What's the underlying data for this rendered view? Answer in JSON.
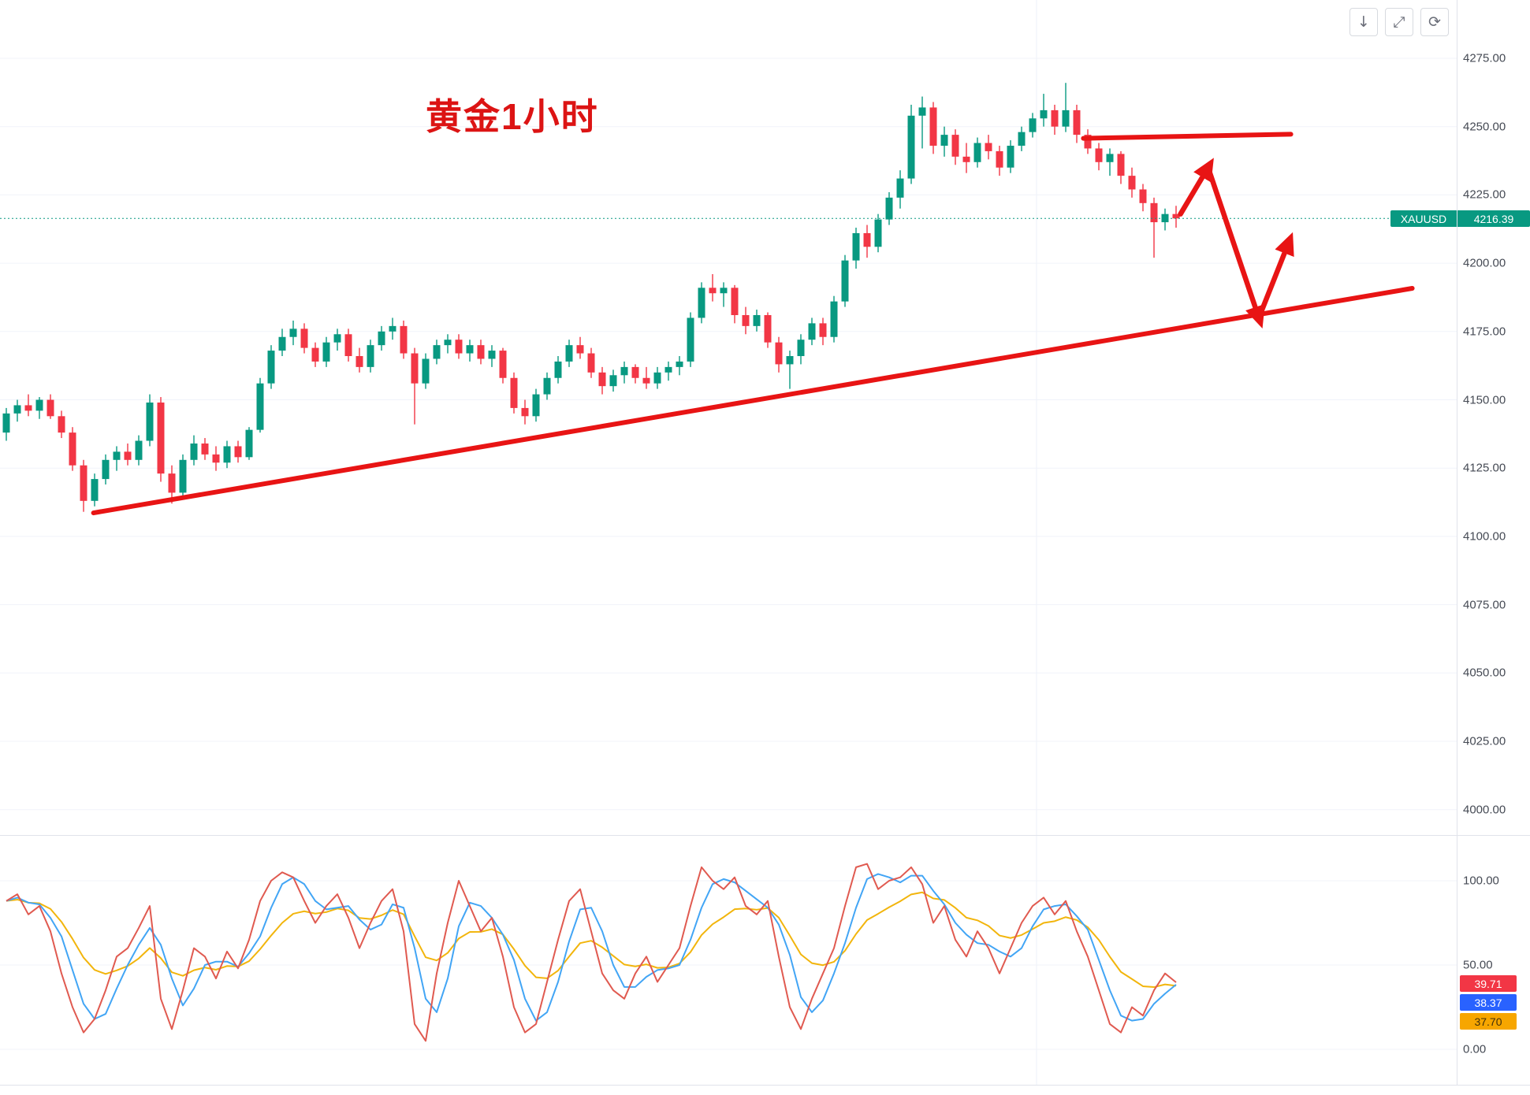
{
  "symbol": {
    "name": "XAUUSD",
    "last_price": "4216.39",
    "badge_bg": "#089981"
  },
  "annotations": {
    "title": "黄金1小时",
    "color": "#dc1414"
  },
  "toolbar": {
    "buttons": [
      {
        "name": "scroll-to-latest",
        "glyph": "↓"
      },
      {
        "name": "maximize",
        "glyph": "⤢"
      },
      {
        "name": "reset-chart",
        "glyph": "⟳"
      }
    ]
  },
  "price_axis": {
    "ticks": [
      "4275.00",
      "4250.00",
      "4225.00",
      "4200.00",
      "4175.00",
      "4150.00",
      "4125.00",
      "4100.00",
      "4075.00",
      "4050.00",
      "4025.00",
      "4000.00"
    ]
  },
  "indicator_axis": {
    "ticks": [
      "100.00",
      "50.00",
      "0.00"
    ]
  },
  "indicator_badges": [
    {
      "value": "39.71",
      "bg": "#f23645",
      "fg": "#ffffff"
    },
    {
      "value": "38.37",
      "bg": "#2962ff",
      "fg": "#ffffff"
    },
    {
      "value": "37.70",
      "bg": "#f7a600",
      "fg": "#42300a"
    }
  ],
  "chart_data": {
    "type": "candlestick",
    "title": "黄金1小时",
    "symbol": "XAUUSD",
    "timeframe": "1H",
    "last_price": 4216.39,
    "ylim": [
      4000,
      4275
    ],
    "price_axis_ticks": [
      4275,
      4250,
      4225,
      4200,
      4175,
      4150,
      4125,
      4100,
      4075,
      4050,
      4025,
      4000
    ],
    "up_color": "#089981",
    "down_color": "#f23645",
    "candles": [
      [
        4138,
        4147,
        4135,
        4145
      ],
      [
        4145,
        4150,
        4142,
        4148
      ],
      [
        4148,
        4152,
        4144,
        4146
      ],
      [
        4146,
        4151,
        4143,
        4150
      ],
      [
        4150,
        4152,
        4143,
        4144
      ],
      [
        4144,
        4146,
        4136,
        4138
      ],
      [
        4138,
        4140,
        4124,
        4126
      ],
      [
        4126,
        4128,
        4109,
        4113
      ],
      [
        4113,
        4123,
        4111,
        4121
      ],
      [
        4121,
        4130,
        4119,
        4128
      ],
      [
        4128,
        4133,
        4124,
        4131
      ],
      [
        4131,
        4134,
        4126,
        4128
      ],
      [
        4128,
        4137,
        4126,
        4135
      ],
      [
        4135,
        4152,
        4133,
        4149
      ],
      [
        4149,
        4151,
        4120,
        4123
      ],
      [
        4123,
        4126,
        4112,
        4116
      ],
      [
        4116,
        4130,
        4114,
        4128
      ],
      [
        4128,
        4137,
        4126,
        4134
      ],
      [
        4134,
        4136,
        4128,
        4130
      ],
      [
        4130,
        4133,
        4124,
        4127
      ],
      [
        4127,
        4135,
        4125,
        4133
      ],
      [
        4133,
        4135,
        4127,
        4129
      ],
      [
        4129,
        4140,
        4128,
        4139
      ],
      [
        4139,
        4158,
        4138,
        4156
      ],
      [
        4156,
        4170,
        4154,
        4168
      ],
      [
        4168,
        4176,
        4166,
        4173
      ],
      [
        4173,
        4179,
        4170,
        4176
      ],
      [
        4176,
        4178,
        4167,
        4169
      ],
      [
        4169,
        4171,
        4162,
        4164
      ],
      [
        4164,
        4173,
        4162,
        4171
      ],
      [
        4171,
        4176,
        4168,
        4174
      ],
      [
        4174,
        4176,
        4164,
        4166
      ],
      [
        4166,
        4169,
        4160,
        4162
      ],
      [
        4162,
        4172,
        4160,
        4170
      ],
      [
        4170,
        4177,
        4168,
        4175
      ],
      [
        4175,
        4180,
        4172,
        4177
      ],
      [
        4177,
        4179,
        4165,
        4167
      ],
      [
        4167,
        4169,
        4141,
        4156
      ],
      [
        4156,
        4167,
        4154,
        4165
      ],
      [
        4165,
        4172,
        4163,
        4170
      ],
      [
        4170,
        4174,
        4167,
        4172
      ],
      [
        4172,
        4174,
        4165,
        4167
      ],
      [
        4167,
        4172,
        4164,
        4170
      ],
      [
        4170,
        4172,
        4163,
        4165
      ],
      [
        4165,
        4170,
        4162,
        4168
      ],
      [
        4168,
        4169,
        4156,
        4158
      ],
      [
        4158,
        4160,
        4145,
        4147
      ],
      [
        4147,
        4150,
        4141,
        4144
      ],
      [
        4144,
        4154,
        4142,
        4152
      ],
      [
        4152,
        4160,
        4150,
        4158
      ],
      [
        4158,
        4166,
        4156,
        4164
      ],
      [
        4164,
        4172,
        4162,
        4170
      ],
      [
        4170,
        4173,
        4165,
        4167
      ],
      [
        4167,
        4169,
        4158,
        4160
      ],
      [
        4160,
        4162,
        4152,
        4155
      ],
      [
        4155,
        4161,
        4153,
        4159
      ],
      [
        4159,
        4164,
        4156,
        4162
      ],
      [
        4162,
        4163,
        4156,
        4158
      ],
      [
        4158,
        4162,
        4154,
        4156
      ],
      [
        4156,
        4162,
        4154,
        4160
      ],
      [
        4160,
        4164,
        4157,
        4162
      ],
      [
        4162,
        4166,
        4159,
        4164
      ],
      [
        4164,
        4182,
        4162,
        4180
      ],
      [
        4180,
        4193,
        4178,
        4191
      ],
      [
        4191,
        4196,
        4186,
        4189
      ],
      [
        4189,
        4193,
        4184,
        4191
      ],
      [
        4191,
        4192,
        4178,
        4181
      ],
      [
        4181,
        4184,
        4174,
        4177
      ],
      [
        4177,
        4183,
        4175,
        4181
      ],
      [
        4181,
        4182,
        4169,
        4171
      ],
      [
        4171,
        4173,
        4160,
        4163
      ],
      [
        4163,
        4168,
        4154,
        4166
      ],
      [
        4166,
        4174,
        4163,
        4172
      ],
      [
        4172,
        4180,
        4170,
        4178
      ],
      [
        4178,
        4180,
        4170,
        4173
      ],
      [
        4173,
        4188,
        4171,
        4186
      ],
      [
        4186,
        4203,
        4184,
        4201
      ],
      [
        4201,
        4213,
        4198,
        4211
      ],
      [
        4211,
        4214,
        4202,
        4206
      ],
      [
        4206,
        4218,
        4204,
        4216
      ],
      [
        4216,
        4226,
        4214,
        4224
      ],
      [
        4224,
        4234,
        4220,
        4231
      ],
      [
        4231,
        4258,
        4229,
        4254
      ],
      [
        4254,
        4261,
        4242,
        4257
      ],
      [
        4257,
        4259,
        4240,
        4243
      ],
      [
        4243,
        4250,
        4239,
        4247
      ],
      [
        4247,
        4249,
        4236,
        4239
      ],
      [
        4239,
        4244,
        4233,
        4237
      ],
      [
        4237,
        4246,
        4235,
        4244
      ],
      [
        4244,
        4247,
        4238,
        4241
      ],
      [
        4241,
        4243,
        4232,
        4235
      ],
      [
        4235,
        4245,
        4233,
        4243
      ],
      [
        4243,
        4250,
        4241,
        4248
      ],
      [
        4248,
        4255,
        4246,
        4253
      ],
      [
        4253,
        4262,
        4250,
        4256
      ],
      [
        4256,
        4258,
        4247,
        4250
      ],
      [
        4250,
        4266,
        4248,
        4256
      ],
      [
        4256,
        4258,
        4244,
        4247
      ],
      [
        4247,
        4249,
        4240,
        4242
      ],
      [
        4242,
        4244,
        4234,
        4237
      ],
      [
        4237,
        4242,
        4232,
        4240
      ],
      [
        4240,
        4241,
        4229,
        4232
      ],
      [
        4232,
        4235,
        4224,
        4227
      ],
      [
        4227,
        4229,
        4219,
        4222
      ],
      [
        4222,
        4224,
        4202,
        4215
      ],
      [
        4215,
        4220,
        4212,
        4218
      ],
      [
        4218,
        4221,
        4213,
        4216.39
      ]
    ],
    "oscillator": {
      "ylim": [
        0,
        100
      ],
      "ticks": [
        100,
        50,
        0
      ],
      "last_values": [
        39.71,
        38.37,
        37.7
      ],
      "series": [
        {
          "name": "fast",
          "color": "#e05a50",
          "values": [
            88,
            92,
            80,
            85,
            70,
            45,
            25,
            10,
            18,
            35,
            55,
            60,
            72,
            85,
            30,
            12,
            35,
            60,
            55,
            42,
            58,
            48,
            65,
            88,
            100,
            105,
            102,
            88,
            75,
            85,
            92,
            78,
            60,
            75,
            88,
            95,
            70,
            15,
            5,
            45,
            75,
            100,
            85,
            70,
            78,
            55,
            25,
            10,
            15,
            40,
            65,
            88,
            95,
            70,
            45,
            35,
            30,
            45,
            55,
            40,
            50,
            60,
            85,
            108,
            100,
            95,
            102,
            85,
            80,
            88,
            55,
            25,
            12,
            30,
            45,
            60,
            85,
            108,
            110,
            95,
            100,
            102,
            108,
            98,
            75,
            85,
            65,
            55,
            70,
            60,
            45,
            60,
            75,
            85,
            90,
            80,
            88,
            70,
            55,
            35,
            15,
            10,
            25,
            20,
            35,
            45,
            39.71
          ]
        },
        {
          "name": "mid",
          "color": "#42a5f5",
          "values": [
            88,
            90,
            87,
            86,
            78,
            67,
            47,
            27,
            18,
            21,
            36,
            50,
            62,
            72,
            62,
            42,
            26,
            36,
            50,
            52,
            52,
            49,
            57,
            67,
            84,
            98,
            102,
            98,
            88,
            83,
            84,
            85,
            77,
            71,
            74,
            86,
            84,
            60,
            30,
            22,
            42,
            73,
            87,
            85,
            78,
            68,
            53,
            30,
            17,
            22,
            40,
            64,
            83,
            84,
            70,
            50,
            37,
            37,
            43,
            47,
            48,
            50,
            65,
            84,
            98,
            101,
            99,
            94,
            89,
            84,
            74,
            56,
            31,
            22,
            29,
            45,
            63,
            84,
            101,
            104,
            102,
            99,
            103,
            103,
            94,
            86,
            75,
            68,
            63,
            62,
            58,
            55,
            60,
            73,
            83,
            85,
            86,
            79,
            71,
            53,
            35,
            20,
            17,
            18,
            27,
            33,
            38.37
          ]
        },
        {
          "name": "slow",
          "color": "#f2b50c",
          "values": [
            88,
            88.8,
            87,
            86.6,
            83.3,
            75.6,
            65.5,
            54.4,
            47.1,
            44.7,
            46.8,
            49.4,
            53.9,
            60.1,
            54.1,
            45.7,
            43.6,
            46.9,
            48.5,
            47.2,
            49.4,
            49.1,
            52.3,
            59.4,
            67.5,
            75,
            80.4,
            81.9,
            80.5,
            81.4,
            83.5,
            82.4,
            77.9,
            77.3,
            79.5,
            82.6,
            80.1,
            67.1,
            54.6,
            52.7,
            57.2,
            65.7,
            69.6,
            69.7,
            71.3,
            68.1,
            59.4,
            49.6,
            42.7,
            42.1,
            46.7,
            55,
            63,
            64.4,
            60.5,
            55.4,
            50.3,
            49.2,
            50.4,
            48.3,
            48.6,
            50.9,
            57.7,
            67.8,
            74.2,
            78.4,
            83.1,
            83.5,
            82.8,
            83.8,
            78.1,
            67.4,
            56.3,
            51.1,
            49.9,
            51.9,
            58.5,
            68.4,
            76.7,
            80.4,
            84.3,
            87.8,
            91.9,
            93.1,
            89.5,
            88.6,
            83.9,
            78.1,
            76.5,
            73.2,
            67.5,
            66,
            67.8,
            71.3,
            75,
            76,
            78.4,
            76.7,
            72.4,
            64.9,
            54.9,
            45.9,
            41.7,
            37.4,
            36.9,
            38.5,
            37.7
          ]
        }
      ]
    },
    "drawings": {
      "color": "#e81414",
      "support_trendline": {
        "points": [
          {
            "i": 7.9,
            "price": 4108.6
          },
          {
            "i": 127.4,
            "price": 4190.8
          }
        ]
      },
      "resistance_line": {
        "points": [
          {
            "i": 97.6,
            "price": 4245.7
          },
          {
            "i": 116.4,
            "price": 4247.2
          }
        ]
      },
      "forecast_path": {
        "points": [
          {
            "i": 106.4,
            "price": 4218
          },
          {
            "i": 108.9,
            "price": 4235
          },
          {
            "i": 113.5,
            "price": 4180
          },
          {
            "i": 116.2,
            "price": 4207.5
          }
        ]
      }
    }
  }
}
